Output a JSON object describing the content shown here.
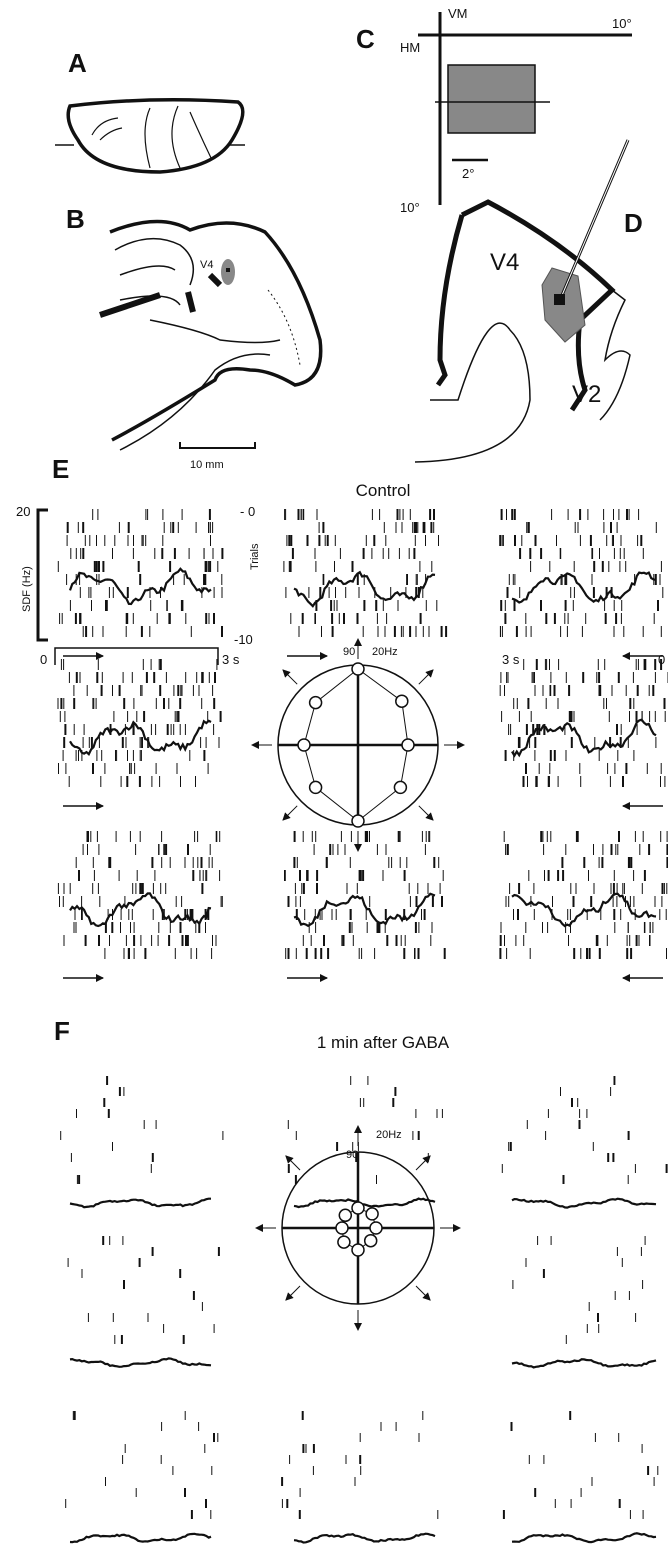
{
  "panel_labels": [
    "A",
    "B",
    "C",
    "D",
    "E",
    "F"
  ],
  "panel_b": {
    "area_label": "V4",
    "scale_bar": "10 mm"
  },
  "panel_c": {
    "vertical_meridian": "VM",
    "horizontal_meridian": "HM",
    "x_extent": "10°",
    "y_extent": "10°",
    "scale_bar": "2°"
  },
  "panel_d": {
    "area_labels": [
      "V4",
      "V2"
    ]
  },
  "panel_e": {
    "title": "Control",
    "sdf_axis_max": "20",
    "sdf_axis_label": "SDF (Hz)",
    "trials_axis_top": "- 0",
    "trials_axis_label": "Trials",
    "trials_axis_bottom": "-10",
    "time_start": "0",
    "time_end": "3 s",
    "time_end_reversed": "3 s",
    "time_start_reversed": "0",
    "polar_angle": "90",
    "polar_scale": "20Hz"
  },
  "panel_f": {
    "title": "1 min after GABA",
    "polar_angle": "90",
    "polar_scale": "20Hz"
  }
}
